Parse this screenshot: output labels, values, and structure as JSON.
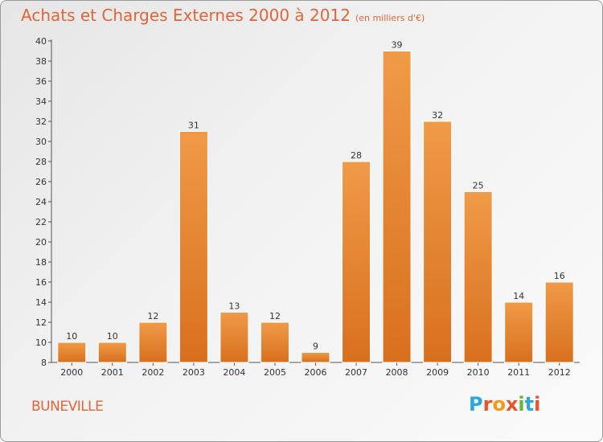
{
  "header": {
    "title": "Achats et Charges Externes 2000 à 2012",
    "subtitle": "(en milliers d'€)"
  },
  "footer": {
    "commune": "BUNEVILLE",
    "logo": "Proxiti",
    "logo_colors": [
      "#2aa7de",
      "#e8552b",
      "#f29a1a",
      "#e8552b",
      "#6bb33a",
      "#2aa7de",
      "#e8552b"
    ]
  },
  "chart_data": {
    "type": "bar",
    "title": "Achats et Charges Externes 2000 à 2012",
    "categories": [
      "2000",
      "2001",
      "2002",
      "2003",
      "2004",
      "2005",
      "2006",
      "2007",
      "2008",
      "2009",
      "2010",
      "2011",
      "2012"
    ],
    "values": [
      10,
      10,
      12,
      31,
      13,
      12,
      9,
      28,
      39,
      32,
      25,
      14,
      16
    ],
    "ylim": [
      8,
      40
    ],
    "yticks": [
      8,
      10,
      12,
      14,
      16,
      18,
      20,
      22,
      24,
      26,
      28,
      30,
      32,
      34,
      36,
      38,
      40
    ],
    "grid": false,
    "legend": "none",
    "bar_color": "#f09a48",
    "bar_color_dark": "#d8701e"
  }
}
